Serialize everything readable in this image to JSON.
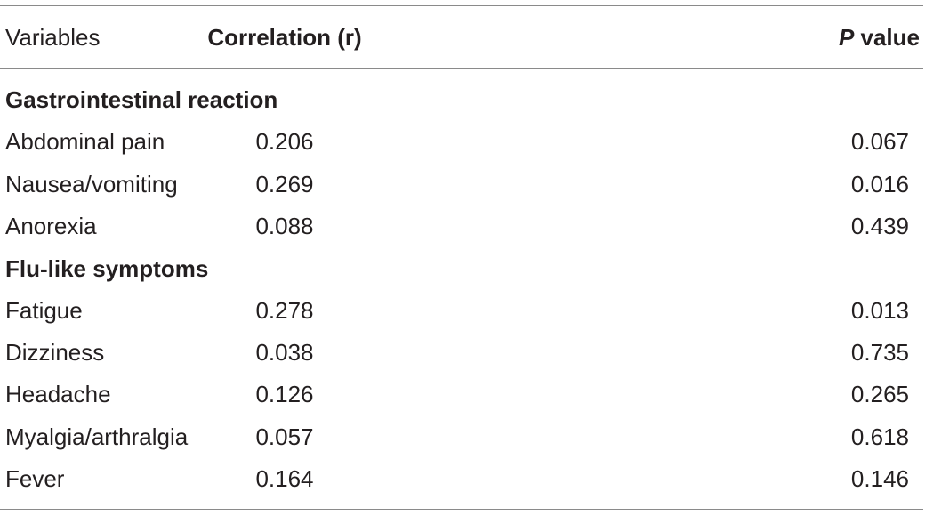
{
  "table": {
    "headers": {
      "variables": "Variables",
      "correlation": "Correlation (r)",
      "p_italic": "P",
      "p_rest": " value"
    },
    "sections": [
      {
        "title": "Gastrointestinal reaction",
        "rows": [
          {
            "variable": "Abdominal pain",
            "r": "0.206",
            "p": "0.067"
          },
          {
            "variable": "Nausea/vomiting",
            "r": "0.269",
            "p": "0.016"
          },
          {
            "variable": "Anorexia",
            "r": "0.088",
            "p": "0.439"
          }
        ]
      },
      {
        "title": "Flu-like symptoms",
        "rows": [
          {
            "variable": "Fatigue",
            "r": "0.278",
            "p": "0.013"
          },
          {
            "variable": "Dizziness",
            "r": "0.038",
            "p": "0.735"
          },
          {
            "variable": "Headache",
            "r": "0.126",
            "p": "0.265"
          },
          {
            "variable": "Myalgia/arthralgia",
            "r": "0.057",
            "p": "0.618"
          },
          {
            "variable": "Fever",
            "r": "0.164",
            "p": "0.146"
          }
        ]
      }
    ]
  }
}
